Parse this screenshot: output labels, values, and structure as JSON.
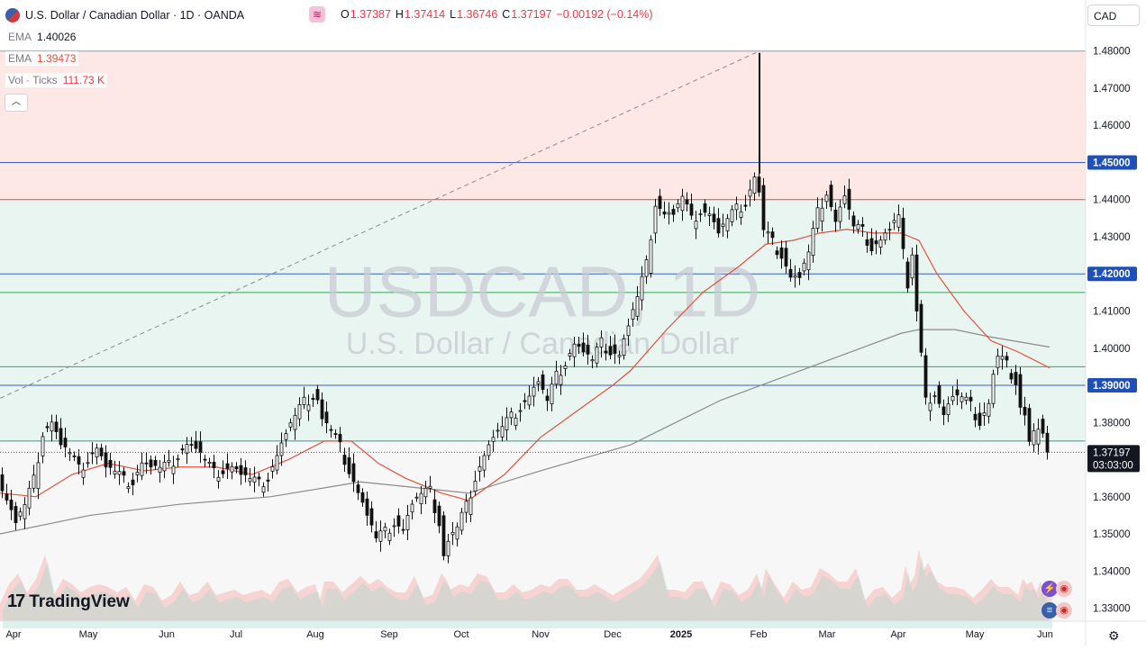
{
  "header": {
    "title": "U.S. Dollar / Canadian Dollar · 1D · OANDA",
    "open_label": "O",
    "open": "1.37387",
    "high_label": "H",
    "high": "1.37414",
    "low_label": "L",
    "low": "1.36746",
    "close_label": "C",
    "close": "1.37197",
    "change": "−0.00192 (−0.14%)",
    "currency_button": "CAD"
  },
  "indicators": {
    "ema1_label": "EMA",
    "ema1_value": "1.40026",
    "ema2_label": "EMA",
    "ema2_value": "1.39473",
    "vol_label": "Vol · Ticks",
    "vol_value": "111.73 K"
  },
  "watermark": {
    "line1": "USDCAD, 1D",
    "line2": "U.S. Dollar / Canadian Dollar"
  },
  "branding": {
    "logo_text": "TradingView"
  },
  "price_tag": {
    "price": "1.37197",
    "countdown": "03:03:00"
  },
  "colors": {
    "up": "#089981",
    "down": "#f23645",
    "ema_fast": "#e0523f",
    "ema_slow": "#8b8b8b",
    "resistance_zone": "#fde8e6",
    "support_zone": "#e8f5f1",
    "blue_line": "#3b5fc4",
    "green_line": "#3aa35c",
    "red_line": "#e0523f"
  },
  "chart_data": {
    "type": "candlestick",
    "symbol": "USDCAD",
    "timeframe": "1D",
    "ylim": [
      1.3265,
      1.4855
    ],
    "y_ticks": [
      "1.33000",
      "1.34000",
      "1.35000",
      "1.36000",
      "1.37000",
      "1.38000",
      "1.39000",
      "1.40000",
      "1.41000",
      "1.42000",
      "1.43000",
      "1.44000",
      "1.45000",
      "1.46000",
      "1.47000",
      "1.48000"
    ],
    "x_labels": [
      "Apr",
      "May",
      "Jun",
      "Jul",
      "Aug",
      "Sep",
      "Oct",
      "Nov",
      "Dec",
      "2025",
      "Feb",
      "Mar",
      "Apr",
      "May",
      "Jun"
    ],
    "horizontal_lines": [
      {
        "price": 1.48,
        "color": "gray"
      },
      {
        "price": 1.45,
        "color": "blue",
        "label": "1.45000"
      },
      {
        "price": 1.44,
        "color": "red"
      },
      {
        "price": 1.42,
        "color": "blue",
        "label": "1.42000"
      },
      {
        "price": 1.415,
        "color": "green"
      },
      {
        "price": 1.395,
        "color": "green"
      },
      {
        "price": 1.39,
        "color": "blue",
        "label": "1.39000"
      },
      {
        "price": 1.375,
        "color": "teal"
      }
    ],
    "zones": [
      {
        "from": 1.44,
        "to": 1.48,
        "kind": "resistance"
      },
      {
        "from": 1.375,
        "to": 1.44,
        "kind": "support"
      }
    ],
    "trendline": {
      "from_price": 1.3865,
      "to_price": 1.48,
      "style": "dashed",
      "start": "early Apr",
      "end": "Feb"
    },
    "price_points": [
      [
        0,
        1.365
      ],
      [
        10,
        1.36
      ],
      [
        20,
        1.353
      ],
      [
        30,
        1.357
      ],
      [
        40,
        1.364
      ],
      [
        50,
        1.378
      ],
      [
        60,
        1.381
      ],
      [
        70,
        1.374
      ],
      [
        80,
        1.371
      ],
      [
        90,
        1.367
      ],
      [
        100,
        1.371
      ],
      [
        110,
        1.374
      ],
      [
        120,
        1.368
      ],
      [
        130,
        1.366
      ],
      [
        140,
        1.364
      ],
      [
        150,
        1.365
      ],
      [
        160,
        1.37
      ],
      [
        170,
        1.368
      ],
      [
        180,
        1.367
      ],
      [
        190,
        1.368
      ],
      [
        200,
        1.372
      ],
      [
        210,
        1.375
      ],
      [
        220,
        1.373
      ],
      [
        230,
        1.369
      ],
      [
        240,
        1.366
      ],
      [
        250,
        1.368
      ],
      [
        260,
        1.369
      ],
      [
        270,
        1.366
      ],
      [
        280,
        1.364
      ],
      [
        290,
        1.363
      ],
      [
        300,
        1.366
      ],
      [
        310,
        1.372
      ],
      [
        320,
        1.377
      ],
      [
        330,
        1.381
      ],
      [
        340,
        1.385
      ],
      [
        350,
        1.388
      ],
      [
        355,
        1.387
      ],
      [
        360,
        1.381
      ],
      [
        370,
        1.377
      ],
      [
        380,
        1.373
      ],
      [
        390,
        1.368
      ],
      [
        400,
        1.362
      ],
      [
        410,
        1.355
      ],
      [
        420,
        1.348
      ],
      [
        430,
        1.35
      ],
      [
        440,
        1.354
      ],
      [
        450,
        1.352
      ],
      [
        460,
        1.358
      ],
      [
        470,
        1.36
      ],
      [
        480,
        1.361
      ],
      [
        490,
        1.354
      ],
      [
        495,
        1.345
      ],
      [
        500,
        1.348
      ],
      [
        510,
        1.351
      ],
      [
        520,
        1.357
      ],
      [
        530,
        1.366
      ],
      [
        540,
        1.372
      ],
      [
        550,
        1.376
      ],
      [
        560,
        1.378
      ],
      [
        570,
        1.381
      ],
      [
        580,
        1.385
      ],
      [
        590,
        1.388
      ],
      [
        600,
        1.391
      ],
      [
        610,
        1.385
      ],
      [
        620,
        1.392
      ],
      [
        630,
        1.397
      ],
      [
        640,
        1.402
      ],
      [
        650,
        1.399
      ],
      [
        660,
        1.396
      ],
      [
        670,
        1.401
      ],
      [
        680,
        1.4
      ],
      [
        690,
        1.399
      ],
      [
        700,
        1.406
      ],
      [
        710,
        1.413
      ],
      [
        720,
        1.422
      ],
      [
        730,
        1.44
      ],
      [
        740,
        1.437
      ],
      [
        750,
        1.436
      ],
      [
        760,
        1.44
      ],
      [
        770,
        1.434
      ],
      [
        780,
        1.438
      ],
      [
        790,
        1.437
      ],
      [
        800,
        1.431
      ],
      [
        810,
        1.434
      ],
      [
        820,
        1.437
      ],
      [
        830,
        1.44
      ],
      [
        840,
        1.447
      ],
      [
        845,
        1.442
      ],
      [
        850,
        1.431
      ],
      [
        860,
        1.428
      ],
      [
        870,
        1.426
      ],
      [
        880,
        1.42
      ],
      [
        890,
        1.419
      ],
      [
        900,
        1.425
      ],
      [
        910,
        1.436
      ],
      [
        920,
        1.443
      ],
      [
        930,
        1.435
      ],
      [
        940,
        1.441
      ],
      [
        950,
        1.432
      ],
      [
        960,
        1.431
      ],
      [
        970,
        1.428
      ],
      [
        980,
        1.43
      ],
      [
        990,
        1.432
      ],
      [
        1000,
        1.435
      ],
      [
        1005,
        1.425
      ],
      [
        1010,
        1.418
      ],
      [
        1015,
        1.426
      ],
      [
        1020,
        1.41
      ],
      [
        1025,
        1.398
      ],
      [
        1030,
        1.385
      ],
      [
        1040,
        1.389
      ],
      [
        1050,
        1.383
      ],
      [
        1060,
        1.387
      ],
      [
        1070,
        1.386
      ],
      [
        1080,
        1.384
      ],
      [
        1090,
        1.381
      ],
      [
        1100,
        1.386
      ],
      [
        1105,
        1.393
      ],
      [
        1110,
        1.397
      ],
      [
        1120,
        1.395
      ],
      [
        1130,
        1.392
      ],
      [
        1135,
        1.385
      ],
      [
        1140,
        1.382
      ],
      [
        1145,
        1.374
      ],
      [
        1150,
        1.376
      ],
      [
        1155,
        1.38
      ],
      [
        1160,
        1.378
      ],
      [
        1165,
        1.372
      ]
    ],
    "ema_fast": [
      [
        0,
        1.361
      ],
      [
        40,
        1.36
      ],
      [
        80,
        1.366
      ],
      [
        120,
        1.369
      ],
      [
        160,
        1.367
      ],
      [
        200,
        1.368
      ],
      [
        240,
        1.368
      ],
      [
        280,
        1.366
      ],
      [
        320,
        1.37
      ],
      [
        360,
        1.375
      ],
      [
        390,
        1.375
      ],
      [
        420,
        1.369
      ],
      [
        450,
        1.365
      ],
      [
        490,
        1.361
      ],
      [
        520,
        1.359
      ],
      [
        560,
        1.366
      ],
      [
        600,
        1.376
      ],
      [
        640,
        1.383
      ],
      [
        680,
        1.39
      ],
      [
        700,
        1.394
      ],
      [
        740,
        1.405
      ],
      [
        780,
        1.415
      ],
      [
        820,
        1.422
      ],
      [
        850,
        1.428
      ],
      [
        880,
        1.429
      ],
      [
        910,
        1.431
      ],
      [
        940,
        1.432
      ],
      [
        970,
        1.431
      ],
      [
        1000,
        1.431
      ],
      [
        1020,
        1.429
      ],
      [
        1040,
        1.42
      ],
      [
        1070,
        1.41
      ],
      [
        1100,
        1.402
      ],
      [
        1130,
        1.399
      ],
      [
        1165,
        1.3947
      ]
    ],
    "ema_slow": [
      [
        0,
        1.35
      ],
      [
        100,
        1.355
      ],
      [
        200,
        1.358
      ],
      [
        300,
        1.36
      ],
      [
        400,
        1.364
      ],
      [
        520,
        1.361
      ],
      [
        600,
        1.367
      ],
      [
        700,
        1.374
      ],
      [
        800,
        1.386
      ],
      [
        900,
        1.395
      ],
      [
        1000,
        1.404
      ],
      [
        1020,
        1.405
      ],
      [
        1060,
        1.405
      ],
      [
        1100,
        1.403
      ],
      [
        1165,
        1.4003
      ]
    ],
    "volume_profile_note": "volume area at bottom of chart, red/green shaded",
    "last_price": 1.37197
  }
}
